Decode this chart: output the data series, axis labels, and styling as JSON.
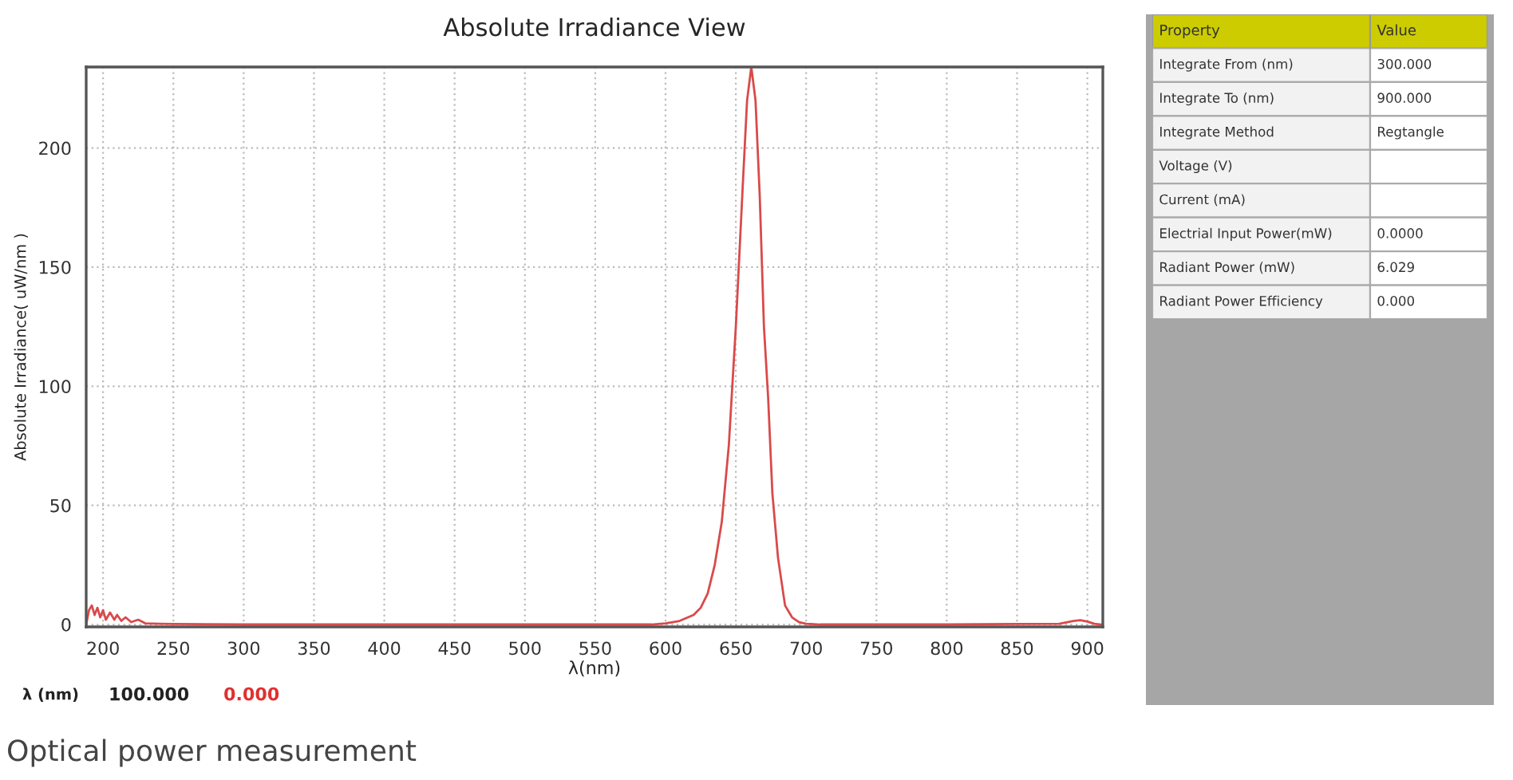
{
  "chart_data": [
    {
      "type": "line",
      "title": "Absolute Irradiance View",
      "xlabel": "λ(nm)",
      "ylabel": "Absolute Irradiance( uW/nm )",
      "x": [
        188,
        190,
        192,
        194,
        196,
        198,
        200,
        202,
        205,
        208,
        210,
        213,
        216,
        220,
        225,
        230,
        240,
        250,
        300,
        400,
        500,
        590,
        600,
        610,
        620,
        625,
        630,
        635,
        640,
        645,
        650,
        655,
        658,
        661,
        664,
        667,
        670,
        673,
        676,
        680,
        685,
        690,
        695,
        700,
        710,
        800,
        880,
        890,
        895,
        900,
        905,
        910
      ],
      "series": [
        {
          "color": "#d94a4a",
          "values": [
            0,
            6,
            8,
            4,
            7,
            3,
            6,
            2,
            5,
            2,
            4,
            1.5,
            3,
            1,
            2,
            0.5,
            0.3,
            0.2,
            0,
            0,
            0,
            0,
            0.5,
            1.5,
            4,
            7,
            13,
            25,
            43,
            75,
            125,
            185,
            220,
            234,
            220,
            180,
            125,
            95,
            55,
            28,
            8,
            3,
            1,
            0.3,
            0,
            0,
            0.3,
            1.5,
            1.8,
            1.2,
            0.3,
            0
          ]
        }
      ],
      "xlim": [
        188,
        911
      ],
      "ylim": [
        -1,
        234
      ],
      "xticks": [
        200,
        250,
        300,
        350,
        400,
        450,
        500,
        550,
        600,
        650,
        700,
        750,
        800,
        850,
        900
      ],
      "yticks": [
        0,
        50,
        100,
        150,
        200
      ],
      "grid": true,
      "legend": false,
      "marker": "none",
      "line_style": "solid",
      "annotations": [
        "λ (nm)",
        "100.000",
        "0.000",
        "Optical power measurement"
      ]
    },
    {
      "type": "other",
      "annotations": [
        "Property",
        "Value"
      ],
      "categories": [
        "Integrate From (nm)",
        "Integrate To (nm)",
        "Integrate Method",
        "Voltage (V)",
        "Current (mA)",
        "Electrial Input Power(mW)",
        "Radiant Power (mW)",
        "Radiant Power Efficiency"
      ],
      "value_labels": [
        "300.000",
        "900.000",
        "Regtangle",
        null,
        null,
        "0.0000",
        "6.029",
        "0.000"
      ]
    }
  ]
}
